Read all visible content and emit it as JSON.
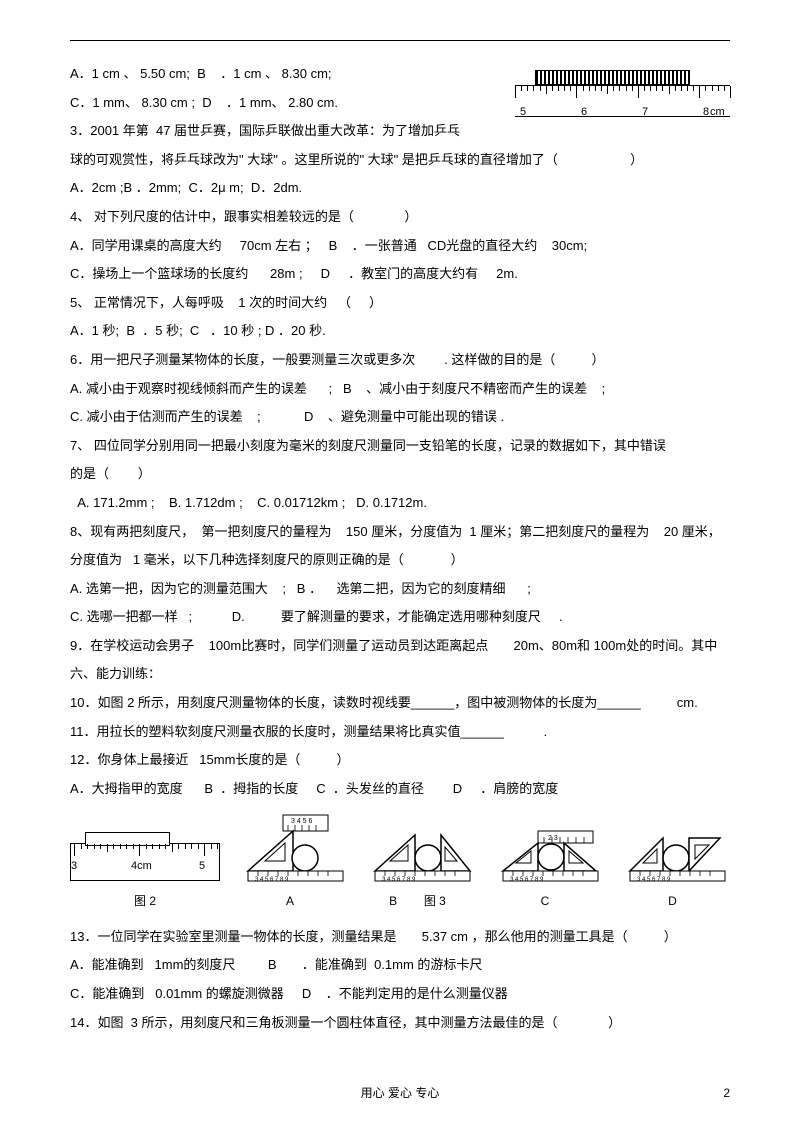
{
  "topRuler": {
    "numbers": [
      "5",
      "6",
      "7",
      "8"
    ],
    "unit": "cm"
  },
  "lines": {
    "q2a": "A．1 cm 、 5.50 cm;  B    ．1 cm 、 8.30 cm;",
    "q2b": "C．1 mm、 8.30 cm ;  D    ．1 mm、 2.80 cm.",
    "q3a": "3．2001 年第  47 届世乒赛，国际乒联做出重大改革：为了增加乒乓",
    "q3b": "球的可观赏性，将乒乓球改为\" 大球\" 。这里所说的\" 大球\" 是把乒乓球的直径增加了（                    ）",
    "q3c": "A．2cm ;B ．2mm;  C．2μ m;  D．2dm.",
    "q4a": "4、 对下列尺度的估计中，跟事实相差较远的是（              ）",
    "q4b": "A．同学用课桌的高度大约     70cm 左右 ；   B    ．一张普通   CD光盘的直径大约    30cm;",
    "q4c": "C．操场上一个篮球场的长度约      28m ;     D     ．教室门的高度大约有     2m.",
    "q5a": "5、 正常情况下，人每呼吸    1 次的时间大约   （     ）",
    "q5b": "A．1 秒;  B  ．5 秒;  C   ．10 秒 ; D ．20 秒.",
    "q6a": "6．用一把尺子测量某物体的长度，一般要测量三次或更多次        . 这样做的目的是（          ）",
    "q6b": "A. 减小由于观察时视线倾斜而产生的误差      ;   B    、减小由于刻度尺不精密而产生的误差    ;",
    "q6c": "C. 减小由于估测而产生的误差    ;            D    、避免测量中可能出现的错误 .",
    "q7a": "7、 四位同学分别用同一把最小刻度为毫米的刻度尺测量同一支铅笔的长度，记录的数据如下，其中错误",
    "q7b": "的是（        ）",
    "q7c": "  A. 171.2mm ;    B. 1.712dm ;    C. 0.01712km ;   D. 0.1712m.",
    "q8a": "8、现有两把刻度尺，  第一把刻度尺的量程为    150 厘米，分度值为  1 厘米；第二把刻度尺的量程为    20 厘米，",
    "q8b": "分度值为   1 毫米，以下几种选择刻度尺的原则正确的是（             ）",
    "q8c": "A. 选第一把，因为它的测量范围大    ;   B ．    选第二把，因为它的刻度精细      ;",
    "q8d": "C. 选哪一把都一样   ;           D.          要了解测量的要求，才能确定选用哪种刻度尺     .",
    "q9a": "9．在学校运动会男子    100m比赛时，同学们测量了运动员到达距离起点       20m、80m和 100m处的时间。其中",
    "sec6": "六、能力训练：",
    "q10": "10．如图 2 所示，用刻度尺测量物体的长度，读数时视线要______，图中被测物体的长度为______          cm.",
    "q11": "11．用拉长的塑料软刻度尺测量衣服的长度时，测量结果将比真实值______           .",
    "q12a": "12．你身体上最接近   15mm长度的是（          ）",
    "q12b": "A．大拇指甲的宽度      B  ．拇指的长度     C  ．头发丝的直径        D     ．肩膀的宽度",
    "q13a": "13．一位同学在实验室里测量一物体的长度，测量结果是       5.37 cm ，那么他用的测量工具是（          ）",
    "q13b": "A．能准确到   1mm的刻度尺         B       ．能准确到  0.1mm 的游标卡尺",
    "q13c": "C．能准确到   0.01mm 的螺旋测微器     D    ．不能判定用的是什么测量仪器",
    "q14": "14．如图  3 所示，用刻度尺和三角板测量一个圆柱体直径，其中测量方法最佳的是（              ）"
  },
  "fig2": {
    "label": "图 2",
    "numbers": [
      "3",
      "4cm",
      "5"
    ]
  },
  "fig3": {
    "labels": [
      "A",
      "B",
      "图 3",
      "C",
      "D"
    ]
  },
  "footer": {
    "text": "用心       爱心       专心",
    "page": "2"
  }
}
